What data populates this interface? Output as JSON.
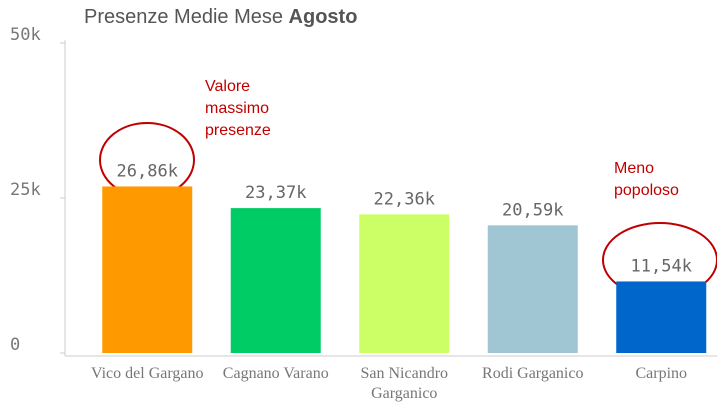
{
  "chart_data": {
    "type": "bar",
    "title": "Presenze Medie Mese",
    "title_emphasis": "Agosto",
    "categories": [
      "Vico del Gargano",
      "Cagnano Varano",
      "San Nicandro Garganico",
      "Rodi Garganico",
      "Carpino"
    ],
    "values": [
      26860,
      23370,
      22360,
      20590,
      11540
    ],
    "value_labels": [
      "26,86k",
      "23,37k",
      "22,36k",
      "20,59k",
      "11,54k"
    ],
    "colors": [
      "#ff9900",
      "#00cc66",
      "#ccff66",
      "#9fc6d2",
      "#0066cc"
    ],
    "ylim": [
      0,
      50000
    ],
    "yticks": [
      0,
      {
        "value": 25000,
        "label": "25k"
      },
      {
        "value": 50000,
        "label": "50k"
      }
    ],
    "annotations": [
      "Valore massimo presenze",
      "Meno popoloso"
    ]
  }
}
